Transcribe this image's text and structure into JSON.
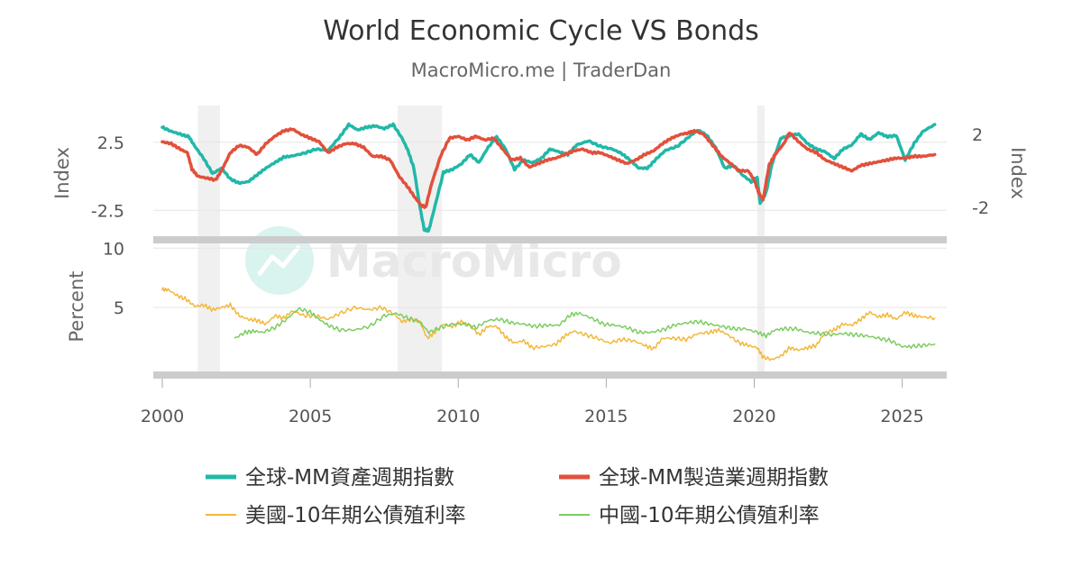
{
  "chart_data": {
    "type": "line",
    "title": "World Economic Cycle VS Bonds",
    "subtitle": "MacroMicro.me | TraderDan",
    "watermark": "MacroMicro",
    "x_ticks": [
      "2000",
      "2005",
      "2010",
      "2015",
      "2020",
      "2025"
    ],
    "x_range": [
      2000,
      2026.2
    ],
    "recession_bands": [
      [
        2001.2,
        2001.95
      ],
      [
        2007.95,
        2009.45
      ],
      [
        2020.1,
        2020.35
      ]
    ],
    "panels": [
      {
        "id": "top",
        "left_axis": {
          "title": "Index",
          "range": [
            -4.4,
            5.2
          ],
          "ticks": [
            "2.5",
            "-2.5"
          ],
          "tick_values": [
            2.5,
            -2.5
          ]
        },
        "right_axis": {
          "title": "Index",
          "range": [
            -3.6,
            3.6
          ],
          "ticks": [
            "2",
            "-2"
          ],
          "tick_values": [
            2,
            -2
          ]
        },
        "series": [
          {
            "name": "全球-MM資產週期指數",
            "color": "#21b8a8",
            "axis": "left",
            "width": 3.5,
            "x": [
              2000,
              2000.3,
              2000.6,
              2000.9,
              2001.1,
              2001.4,
              2001.7,
              2002.0,
              2002.3,
              2002.6,
              2002.9,
              2003.2,
              2003.5,
              2003.8,
              2004.1,
              2004.4,
              2004.8,
              2005.2,
              2005.6,
              2006.0,
              2006.3,
              2006.6,
              2006.9,
              2007.2,
              2007.5,
              2007.8,
              2008.1,
              2008.3,
              2008.5,
              2008.7,
              2008.85,
              2009.0,
              2009.2,
              2009.5,
              2009.8,
              2010.1,
              2010.4,
              2010.7,
              2011.0,
              2011.3,
              2011.6,
              2011.9,
              2012.2,
              2012.5,
              2012.8,
              2013.1,
              2013.4,
              2013.7,
              2014.0,
              2014.4,
              2014.8,
              2015.2,
              2015.5,
              2015.8,
              2016.1,
              2016.4,
              2016.7,
              2017.0,
              2017.4,
              2017.8,
              2018.1,
              2018.4,
              2018.7,
              2019.0,
              2019.3,
              2019.6,
              2019.9,
              2020.1,
              2020.2,
              2020.4,
              2020.6,
              2020.9,
              2021.2,
              2021.5,
              2021.8,
              2022.1,
              2022.4,
              2022.7,
              2023.0,
              2023.3,
              2023.6,
              2023.9,
              2024.2,
              2024.5,
              2024.8,
              2025.1,
              2025.4,
              2025.7,
              2026.1
            ],
            "y": [
              3.6,
              3.3,
              3.1,
              2.9,
              2.2,
              1.3,
              0.2,
              0.6,
              -0.2,
              -0.5,
              -0.4,
              0.1,
              0.6,
              1.0,
              1.4,
              1.5,
              1.7,
              2.0,
              1.9,
              2.9,
              3.8,
              3.4,
              3.6,
              3.7,
              3.5,
              3.8,
              2.8,
              1.9,
              0.6,
              -2.2,
              -3.9,
              -4.0,
              -2.3,
              0.3,
              0.5,
              0.9,
              1.6,
              1.0,
              2.1,
              2.9,
              2.0,
              0.5,
              1.2,
              1.0,
              1.3,
              2.0,
              1.8,
              1.6,
              2.3,
              2.6,
              2.2,
              2.0,
              1.7,
              1.2,
              0.6,
              0.6,
              1.3,
              1.9,
              2.2,
              2.9,
              3.4,
              3.0,
              2.1,
              0.6,
              0.8,
              0.1,
              -0.4,
              -0.1,
              -2.0,
              -1.2,
              0.9,
              2.8,
              3.0,
              3.1,
              2.4,
              2.0,
              1.8,
              1.3,
              2.0,
              2.3,
              3.1,
              2.7,
              3.2,
              2.9,
              3.0,
              1.2,
              2.4,
              3.3,
              3.8
            ]
          },
          {
            "name": "全球-MM製造業週期指數",
            "color": "#e2503b",
            "axis": "right",
            "width": 3.5,
            "x": [
              2000,
              2000.3,
              2000.6,
              2000.85,
              2001.0,
              2001.2,
              2001.5,
              2001.8,
              2002.0,
              2002.3,
              2002.6,
              2002.9,
              2003.2,
              2003.5,
              2003.8,
              2004.1,
              2004.4,
              2004.7,
              2005.0,
              2005.3,
              2005.6,
              2005.9,
              2006.2,
              2006.5,
              2006.8,
              2007.1,
              2007.4,
              2007.7,
              2008.0,
              2008.3,
              2008.55,
              2008.75,
              2008.9,
              2009.1,
              2009.4,
              2009.7,
              2010.0,
              2010.3,
              2010.6,
              2010.9,
              2011.2,
              2011.5,
              2011.8,
              2012.1,
              2012.4,
              2012.7,
              2013.0,
              2013.3,
              2013.6,
              2013.9,
              2014.2,
              2014.5,
              2014.8,
              2015.1,
              2015.4,
              2015.7,
              2016.0,
              2016.3,
              2016.6,
              2016.9,
              2017.2,
              2017.5,
              2017.8,
              2018.0,
              2018.3,
              2018.6,
              2018.9,
              2019.2,
              2019.5,
              2019.8,
              2020.0,
              2020.15,
              2020.3,
              2020.5,
              2020.7,
              2021.0,
              2021.2,
              2021.5,
              2021.8,
              2022.1,
              2022.4,
              2022.7,
              2023.0,
              2023.3,
              2023.6,
              2023.9,
              2024.2,
              2024.5,
              2024.8,
              2025.1,
              2025.4,
              2025.7,
              2026.1
            ],
            "y": [
              1.6,
              1.5,
              1.2,
              1.0,
              0.1,
              -0.3,
              -0.4,
              -0.5,
              0.0,
              1.0,
              1.4,
              1.3,
              0.9,
              1.5,
              1.9,
              2.2,
              2.3,
              2.0,
              1.8,
              1.6,
              1.0,
              1.3,
              1.5,
              1.5,
              1.3,
              0.8,
              0.8,
              0.6,
              -0.3,
              -0.9,
              -1.5,
              -1.9,
              -2.0,
              -0.7,
              0.8,
              1.8,
              1.9,
              1.7,
              1.9,
              1.7,
              1.8,
              1.2,
              0.6,
              0.7,
              0.2,
              0.4,
              0.6,
              0.7,
              0.9,
              1.1,
              1.2,
              1.0,
              1.0,
              0.8,
              0.6,
              0.4,
              0.6,
              0.9,
              1.1,
              1.5,
              1.8,
              2.0,
              2.1,
              2.2,
              2.0,
              1.4,
              0.8,
              0.4,
              0.0,
              0.0,
              -0.5,
              -1.2,
              -1.6,
              0.3,
              0.9,
              1.5,
              2.1,
              1.6,
              1.2,
              1.0,
              0.6,
              0.4,
              0.2,
              0.0,
              0.3,
              0.4,
              0.5,
              0.6,
              0.7,
              0.7,
              0.8,
              0.8,
              0.9
            ]
          }
        ]
      },
      {
        "id": "bottom",
        "left_axis": {
          "title": "Percent",
          "range": [
            -0.4,
            10.4
          ],
          "ticks": [
            "10",
            "5"
          ],
          "tick_values": [
            10,
            5
          ]
        },
        "series": [
          {
            "name": "美國-10年期公債殖利率",
            "color": "#f2b83b",
            "axis": "left",
            "width": 1.5,
            "x": [
              2000,
              2000.2,
              2000.5,
              2000.8,
              2001.1,
              2001.4,
              2001.7,
              2002.0,
              2002.3,
              2002.6,
              2002.9,
              2003.2,
              2003.5,
              2003.8,
              2004.1,
              2004.4,
              2004.8,
              2005.2,
              2005.6,
              2006.0,
              2006.5,
              2007.0,
              2007.4,
              2007.8,
              2008.1,
              2008.4,
              2008.7,
              2008.95,
              2009.2,
              2009.5,
              2009.8,
              2010.1,
              2010.4,
              2010.7,
              2011.0,
              2011.3,
              2011.6,
              2011.9,
              2012.2,
              2012.5,
              2012.9,
              2013.3,
              2013.6,
              2013.9,
              2014.3,
              2014.7,
              2015.1,
              2015.5,
              2015.9,
              2016.3,
              2016.6,
              2016.9,
              2017.3,
              2017.7,
              2018.1,
              2018.5,
              2018.8,
              2019.1,
              2019.5,
              2019.8,
              2020.1,
              2020.3,
              2020.6,
              2020.9,
              2021.2,
              2021.5,
              2021.8,
              2022.1,
              2022.4,
              2022.7,
              2023.0,
              2023.3,
              2023.6,
              2023.9,
              2024.2,
              2024.5,
              2024.8,
              2025.1,
              2025.4,
              2025.7,
              2026.1
            ],
            "y": [
              6.5,
              6.5,
              6.0,
              5.7,
              5.1,
              5.2,
              4.8,
              5.0,
              5.2,
              4.3,
              4.0,
              3.9,
              3.6,
              4.3,
              4.1,
              4.7,
              4.3,
              4.3,
              4.0,
              4.5,
              5.0,
              4.8,
              5.0,
              4.5,
              3.8,
              4.0,
              3.8,
              2.4,
              2.9,
              3.6,
              3.4,
              3.8,
              3.5,
              2.7,
              3.4,
              3.4,
              2.5,
              2.0,
              2.2,
              1.6,
              1.7,
              1.9,
              2.6,
              3.0,
              2.7,
              2.4,
              2.0,
              2.3,
              2.2,
              1.8,
              1.5,
              2.4,
              2.4,
              2.3,
              2.8,
              2.9,
              3.1,
              2.7,
              2.0,
              1.8,
              1.6,
              0.8,
              0.6,
              0.9,
              1.6,
              1.4,
              1.6,
              1.8,
              2.9,
              3.1,
              3.6,
              3.5,
              4.0,
              4.6,
              4.2,
              4.4,
              4.0,
              4.6,
              4.3,
              4.2,
              4.1
            ]
          },
          {
            "name": "中國-10年期公債殖利率",
            "color": "#7dcc62",
            "axis": "left",
            "width": 1.5,
            "x": [
              2002.45,
              2002.8,
              2003.1,
              2003.4,
              2003.8,
              2004.2,
              2004.6,
              2005.0,
              2005.3,
              2005.6,
              2006.0,
              2006.5,
              2007.0,
              2007.5,
              2007.9,
              2008.3,
              2008.7,
              2009.0,
              2009.4,
              2009.8,
              2010.2,
              2010.6,
              2011.0,
              2011.4,
              2011.8,
              2012.2,
              2012.6,
              2013.0,
              2013.4,
              2013.8,
              2014.1,
              2014.5,
              2014.9,
              2015.3,
              2015.7,
              2016.1,
              2016.5,
              2016.9,
              2017.3,
              2017.7,
              2018.1,
              2018.5,
              2018.9,
              2019.3,
              2019.7,
              2020.1,
              2020.4,
              2020.7,
              2021.0,
              2021.4,
              2021.8,
              2022.2,
              2022.6,
              2023.0,
              2023.4,
              2023.8,
              2024.2,
              2024.6,
              2025.0,
              2025.3,
              2025.7,
              2026.1
            ],
            "y": [
              2.4,
              2.9,
              3.0,
              2.9,
              3.3,
              4.0,
              4.9,
              4.6,
              4.0,
              3.5,
              3.1,
              3.1,
              3.4,
              4.3,
              4.5,
              4.1,
              3.8,
              2.9,
              3.3,
              3.6,
              3.6,
              3.3,
              3.9,
              4.0,
              3.7,
              3.6,
              3.4,
              3.5,
              3.5,
              4.4,
              4.5,
              4.1,
              3.6,
              3.5,
              3.3,
              2.9,
              2.9,
              3.1,
              3.5,
              3.7,
              3.8,
              3.6,
              3.4,
              3.2,
              3.2,
              2.9,
              2.6,
              3.1,
              3.2,
              3.2,
              2.9,
              2.8,
              2.7,
              2.8,
              2.7,
              2.6,
              2.4,
              2.2,
              1.7,
              1.7,
              1.8,
              1.9
            ]
          }
        ]
      }
    ],
    "legend": {
      "placement": "bottom",
      "items": [
        "全球-MM資產週期指數",
        "全球-MM製造業週期指數",
        "美國-10年期公債殖利率",
        "中國-10年期公債殖利率"
      ]
    }
  }
}
